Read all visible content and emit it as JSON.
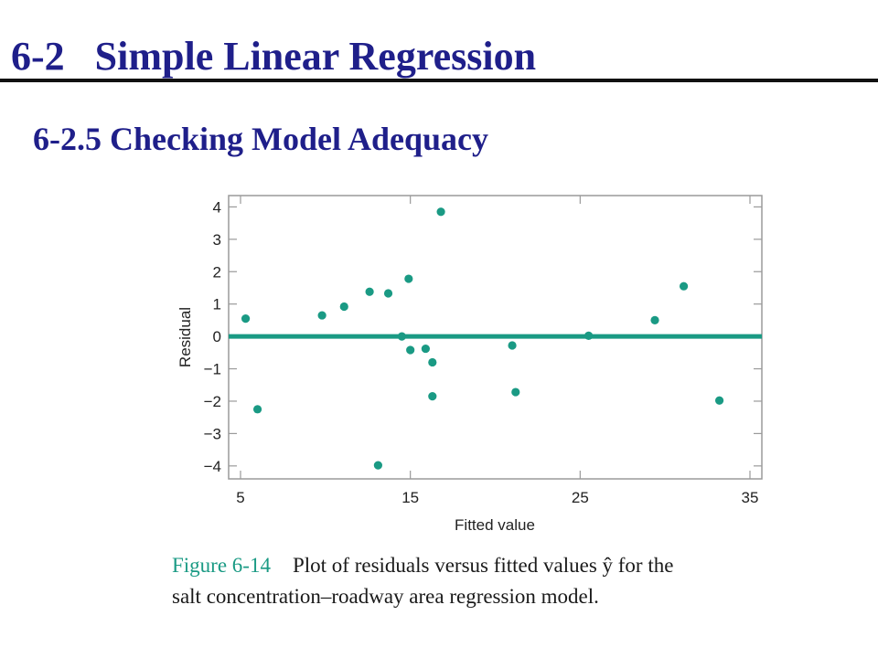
{
  "slide": {
    "title": "6-2   Simple Linear Regression",
    "subtitle": "6-2.5 Checking Model Adequacy"
  },
  "caption": {
    "figure_label": "Figure 6-14",
    "text_line1": "Plot of residuals versus fitted values ŷ for the",
    "text_line2": "salt concentration–roadway area regression model."
  },
  "chart_data": {
    "type": "scatter",
    "xlabel": "Fitted value",
    "ylabel": "Residual",
    "xlim": [
      4.3,
      35.7
    ],
    "ylim": [
      -4.4,
      4.35
    ],
    "x_ticks": [
      5,
      15,
      25,
      35
    ],
    "y_ticks": [
      4,
      3,
      2,
      1,
      0,
      -1,
      -2,
      -3,
      -4
    ],
    "y_tick_labels": [
      "4",
      "3",
      "2",
      "1",
      "0",
      "−1",
      "−2",
      "−3",
      "−4"
    ],
    "grid": false,
    "reference_line": {
      "y": 0,
      "color": "#1a9a84"
    },
    "point_color": "#1a9a84",
    "points": [
      {
        "x": 5.3,
        "y": 0.55
      },
      {
        "x": 6.0,
        "y": -2.25
      },
      {
        "x": 9.8,
        "y": 0.65
      },
      {
        "x": 11.1,
        "y": 0.92
      },
      {
        "x": 12.6,
        "y": 1.38
      },
      {
        "x": 13.1,
        "y": -3.98
      },
      {
        "x": 13.7,
        "y": 1.33
      },
      {
        "x": 14.5,
        "y": 0.0
      },
      {
        "x": 14.9,
        "y": 1.78
      },
      {
        "x": 15.0,
        "y": -0.42
      },
      {
        "x": 15.9,
        "y": -0.38
      },
      {
        "x": 16.3,
        "y": -0.8
      },
      {
        "x": 16.3,
        "y": -1.85
      },
      {
        "x": 16.8,
        "y": 3.85
      },
      {
        "x": 21.0,
        "y": -0.28
      },
      {
        "x": 21.2,
        "y": -1.72
      },
      {
        "x": 25.5,
        "y": 0.02
      },
      {
        "x": 29.4,
        "y": 0.5
      },
      {
        "x": 31.1,
        "y": 1.55
      },
      {
        "x": 33.2,
        "y": -1.98
      }
    ]
  }
}
